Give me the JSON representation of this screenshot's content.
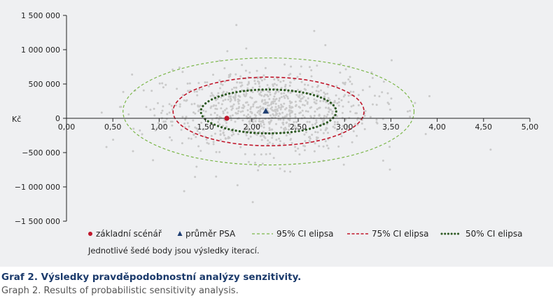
{
  "chart_data": {
    "type": "scatter",
    "title": "",
    "xlabel": "",
    "ylabel": "Kč",
    "xlim": [
      0,
      5
    ],
    "ylim": [
      -1500000,
      1500000
    ],
    "x_ticks": [
      "0,00",
      "0,50",
      "1,00",
      "1,50",
      "2,00",
      "2,50",
      "3,00",
      "3,50",
      "4,00",
      "4,50",
      "5,00"
    ],
    "y_ticks": [
      "1 500 000",
      "1 000 000",
      "500 000",
      "0",
      "−500 000",
      "−1 000 000",
      "−1 500 000"
    ],
    "base_scenario": {
      "x": 1.73,
      "y": 0,
      "color": "#c0172b"
    },
    "psa_mean": {
      "x": 2.15,
      "y": 100000,
      "color": "#1f3f73"
    },
    "ellipses": [
      {
        "name": "95% CI elipsa",
        "cx": 2.18,
        "cy": 100000,
        "rx": 1.57,
        "ry": 780000,
        "color": "#7ab648",
        "style": "dashed"
      },
      {
        "name": "75% CI elipsa",
        "cx": 2.18,
        "cy": 100000,
        "rx": 1.03,
        "ry": 500000,
        "color": "#c0172b",
        "style": "dashed"
      },
      {
        "name": "50% CI elipsa",
        "cx": 2.18,
        "cy": 100000,
        "rx": 0.73,
        "ry": 320000,
        "color": "#2e5a23",
        "style": "dotted"
      }
    ],
    "iterations": {
      "count": 900,
      "center_x": 2.18,
      "center_y": 100000,
      "sd_x": 0.55,
      "sd_y": 280000,
      "color": "#c9c9c9"
    },
    "legend": [
      {
        "label": "základní scénář",
        "marker": "dot",
        "color": "#c0172b"
      },
      {
        "label": "průměr PSA",
        "marker": "triangle",
        "color": "#1f3f73"
      },
      {
        "label": "95% CI elipsa",
        "marker": "dashed",
        "color": "#7ab648"
      },
      {
        "label": "75% CI elipsa",
        "marker": "dashed",
        "color": "#c0172b"
      },
      {
        "label": "50% CI elipsa",
        "marker": "dotted",
        "color": "#2e5a23"
      }
    ],
    "legend_placement": "bottom",
    "note": "Jednotlivé šedé body jsou výsledky iterací.",
    "grid": false
  },
  "caption": {
    "title": "Graf 2. Výsledky pravděpodobnostní analýzy senzitivity.",
    "subtitle": "Graph 2. Results of probabilistic sensitivity analysis."
  }
}
